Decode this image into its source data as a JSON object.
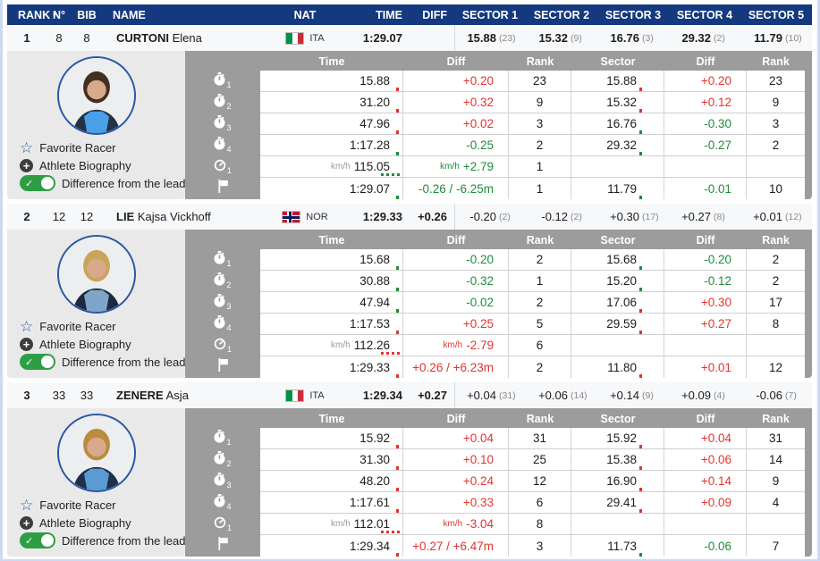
{
  "colors": {
    "header_navy": "#15397f",
    "accent_red": "#e23430",
    "accent_green": "#1e8c3c",
    "panel_gray": "#9c9c9c",
    "side_panel_gray": "#e9e9ea",
    "toggle_green": "#2e9e44",
    "edge_blue": "#ccd9f2",
    "star_blue": "#2d59a8"
  },
  "main_header": {
    "columns": [
      "RANK",
      "N°",
      "BIB",
      "NAME",
      "NAT",
      "TIME",
      "DIFF",
      "SECTOR 1",
      "SECTOR 2",
      "SECTOR 3",
      "SECTOR 4",
      "SECTOR 5"
    ],
    "sort_icon": "sort-desc-icon"
  },
  "detail_columns": {
    "time": "Time",
    "diff": "Diff",
    "rank": "Rank",
    "sector": "Sector",
    "diff2": "Diff",
    "rank2": "Rank"
  },
  "side_panel": {
    "favorite_label": "Favorite Racer",
    "biography_label": "Athlete Biography",
    "toggle_label": "Difference from the leader",
    "toggle_state": "on"
  },
  "speed_unit": "km/h",
  "racers": [
    {
      "rank": "1",
      "number": "8",
      "bib": "8",
      "last_name": "CURTONI",
      "first_name": "Elena",
      "nation": "ITA",
      "flag": "ita",
      "time": "1:29.07",
      "diff": "",
      "sector_values_bold": true,
      "photo": {
        "hair": "#43301f",
        "suit": "#233246",
        "accent": "#4aa0e8"
      },
      "sectors": [
        {
          "value": "15.88",
          "rank": "(23)"
        },
        {
          "value": "15.32",
          "rank": "(9)"
        },
        {
          "value": "16.76",
          "rank": "(3)"
        },
        {
          "value": "29.32",
          "rank": "(2)"
        },
        {
          "value": "11.79",
          "rank": "(10)"
        }
      ],
      "splits": [
        {
          "icon": "stopwatch-icon",
          "index": "1",
          "time": "15.88",
          "time_prefix": "",
          "time_mark": "red",
          "diff": "+0.20",
          "diff_prefix": "",
          "diff_color": "red",
          "rank": "23",
          "sector": "15.88",
          "sector_mark": "red",
          "sector_diff": "+0.20",
          "sector_diff_color": "red",
          "sector_rank": "23"
        },
        {
          "icon": "stopwatch-icon",
          "index": "2",
          "time": "31.20",
          "time_prefix": "",
          "time_mark": "red",
          "diff": "+0.32",
          "diff_prefix": "",
          "diff_color": "red",
          "rank": "9",
          "sector": "15.32",
          "sector_mark": "red",
          "sector_diff": "+0.12",
          "sector_diff_color": "red",
          "sector_rank": "9"
        },
        {
          "icon": "stopwatch-icon",
          "index": "3",
          "time": "47.96",
          "time_prefix": "",
          "time_mark": "red",
          "diff": "+0.02",
          "diff_prefix": "",
          "diff_color": "red",
          "rank": "3",
          "sector": "16.76",
          "sector_mark": "green",
          "sector_diff": "-0.30",
          "sector_diff_color": "green",
          "sector_rank": "3"
        },
        {
          "icon": "stopwatch-icon",
          "index": "4",
          "time": "1:17.28",
          "time_prefix": "",
          "time_mark": "green",
          "diff": "-0.25",
          "diff_prefix": "",
          "diff_color": "green",
          "rank": "2",
          "sector": "29.32",
          "sector_mark": "green",
          "sector_diff": "-0.27",
          "sector_diff_color": "green",
          "sector_rank": "2"
        },
        {
          "icon": "speedometer-icon",
          "index": "1",
          "time": "115.05",
          "time_prefix": "km/h",
          "time_mark": "green-dotted",
          "diff": "+2.79",
          "diff_prefix": "km/h",
          "diff_color": "green",
          "rank": "1",
          "sector": "",
          "sector_mark": "",
          "sector_diff": "",
          "sector_diff_color": "",
          "sector_rank": ""
        },
        {
          "icon": "finish-flag-icon",
          "index": "",
          "time": "1:29.07",
          "time_prefix": "",
          "time_mark": "green",
          "diff": "-0.26 / -6.25m",
          "diff_prefix": "",
          "diff_color": "green",
          "rank": "1",
          "sector": "11.79",
          "sector_mark": "green",
          "sector_diff": "-0.01",
          "sector_diff_color": "green",
          "sector_rank": "10"
        }
      ]
    },
    {
      "rank": "2",
      "number": "12",
      "bib": "12",
      "last_name": "LIE",
      "first_name": "Kajsa Vickhoff",
      "nation": "NOR",
      "flag": "nor",
      "time": "1:29.33",
      "diff": "+0.26",
      "sector_values_bold": false,
      "photo": {
        "hair": "#caa45a",
        "suit": "#1c2a3e",
        "accent": "#7da6c8"
      },
      "sectors": [
        {
          "value": "-0.20",
          "rank": "(2)"
        },
        {
          "value": "-0.12",
          "rank": "(2)"
        },
        {
          "value": "+0.30",
          "rank": "(17)"
        },
        {
          "value": "+0.27",
          "rank": "(8)"
        },
        {
          "value": "+0.01",
          "rank": "(12)"
        }
      ],
      "splits": [
        {
          "icon": "stopwatch-icon",
          "index": "1",
          "time": "15.68",
          "time_prefix": "",
          "time_mark": "green",
          "diff": "-0.20",
          "diff_prefix": "",
          "diff_color": "green",
          "rank": "2",
          "sector": "15.68",
          "sector_mark": "green",
          "sector_diff": "-0.20",
          "sector_diff_color": "green",
          "sector_rank": "2"
        },
        {
          "icon": "stopwatch-icon",
          "index": "2",
          "time": "30.88",
          "time_prefix": "",
          "time_mark": "green",
          "diff": "-0.32",
          "diff_prefix": "",
          "diff_color": "green",
          "rank": "1",
          "sector": "15.20",
          "sector_mark": "green",
          "sector_diff": "-0.12",
          "sector_diff_color": "green",
          "sector_rank": "2"
        },
        {
          "icon": "stopwatch-icon",
          "index": "3",
          "time": "47.94",
          "time_prefix": "",
          "time_mark": "green",
          "diff": "-0.02",
          "diff_prefix": "",
          "diff_color": "green",
          "rank": "2",
          "sector": "17.06",
          "sector_mark": "red",
          "sector_diff": "+0.30",
          "sector_diff_color": "red",
          "sector_rank": "17"
        },
        {
          "icon": "stopwatch-icon",
          "index": "4",
          "time": "1:17.53",
          "time_prefix": "",
          "time_mark": "red",
          "diff": "+0.25",
          "diff_prefix": "",
          "diff_color": "red",
          "rank": "5",
          "sector": "29.59",
          "sector_mark": "red",
          "sector_diff": "+0.27",
          "sector_diff_color": "red",
          "sector_rank": "8"
        },
        {
          "icon": "speedometer-icon",
          "index": "1",
          "time": "112.26",
          "time_prefix": "km/h",
          "time_mark": "red-dotted",
          "diff": "-2.79",
          "diff_prefix": "km/h",
          "diff_color": "red",
          "rank": "6",
          "sector": "",
          "sector_mark": "",
          "sector_diff": "",
          "sector_diff_color": "",
          "sector_rank": ""
        },
        {
          "icon": "finish-flag-icon",
          "index": "",
          "time": "1:29.33",
          "time_prefix": "",
          "time_mark": "red",
          "diff": "+0.26 / +6.23m",
          "diff_prefix": "",
          "diff_color": "red",
          "rank": "2",
          "sector": "11.80",
          "sector_mark": "red",
          "sector_diff": "+0.01",
          "sector_diff_color": "red",
          "sector_rank": "12"
        }
      ]
    },
    {
      "rank": "3",
      "number": "33",
      "bib": "33",
      "last_name": "ZENERE",
      "first_name": "Asja",
      "nation": "ITA",
      "flag": "ita",
      "time": "1:29.34",
      "diff": "+0.27",
      "sector_values_bold": false,
      "photo": {
        "hair": "#b98c3e",
        "suit": "#203048",
        "accent": "#5b9bd5"
      },
      "sectors": [
        {
          "value": "+0.04",
          "rank": "(31)"
        },
        {
          "value": "+0.06",
          "rank": "(14)"
        },
        {
          "value": "+0.14",
          "rank": "(9)"
        },
        {
          "value": "+0.09",
          "rank": "(4)"
        },
        {
          "value": "-0.06",
          "rank": "(7)"
        }
      ],
      "splits": [
        {
          "icon": "stopwatch-icon",
          "index": "1",
          "time": "15.92",
          "time_prefix": "",
          "time_mark": "red",
          "diff": "+0.04",
          "diff_prefix": "",
          "diff_color": "red",
          "rank": "31",
          "sector": "15.92",
          "sector_mark": "red",
          "sector_diff": "+0.04",
          "sector_diff_color": "red",
          "sector_rank": "31"
        },
        {
          "icon": "stopwatch-icon",
          "index": "2",
          "time": "31.30",
          "time_prefix": "",
          "time_mark": "red",
          "diff": "+0.10",
          "diff_prefix": "",
          "diff_color": "red",
          "rank": "25",
          "sector": "15.38",
          "sector_mark": "red",
          "sector_diff": "+0.06",
          "sector_diff_color": "red",
          "sector_rank": "14"
        },
        {
          "icon": "stopwatch-icon",
          "index": "3",
          "time": "48.20",
          "time_prefix": "",
          "time_mark": "red",
          "diff": "+0.24",
          "diff_prefix": "",
          "diff_color": "red",
          "rank": "12",
          "sector": "16.90",
          "sector_mark": "red",
          "sector_diff": "+0.14",
          "sector_diff_color": "red",
          "sector_rank": "9"
        },
        {
          "icon": "stopwatch-icon",
          "index": "4",
          "time": "1:17.61",
          "time_prefix": "",
          "time_mark": "red",
          "diff": "+0.33",
          "diff_prefix": "",
          "diff_color": "red",
          "rank": "6",
          "sector": "29.41",
          "sector_mark": "red",
          "sector_diff": "+0.09",
          "sector_diff_color": "red",
          "sector_rank": "4"
        },
        {
          "icon": "speedometer-icon",
          "index": "1",
          "time": "112.01",
          "time_prefix": "km/h",
          "time_mark": "red-dotted",
          "diff": "-3.04",
          "diff_prefix": "km/h",
          "diff_color": "red",
          "rank": "8",
          "sector": "",
          "sector_mark": "",
          "sector_diff": "",
          "sector_diff_color": "",
          "sector_rank": ""
        },
        {
          "icon": "finish-flag-icon",
          "index": "",
          "time": "1:29.34",
          "time_prefix": "",
          "time_mark": "red",
          "diff": "+0.27 / +6.47m",
          "diff_prefix": "",
          "diff_color": "red",
          "rank": "3",
          "sector": "11.73",
          "sector_mark": "green",
          "sector_diff": "-0.06",
          "sector_diff_color": "green",
          "sector_rank": "7"
        }
      ]
    }
  ]
}
